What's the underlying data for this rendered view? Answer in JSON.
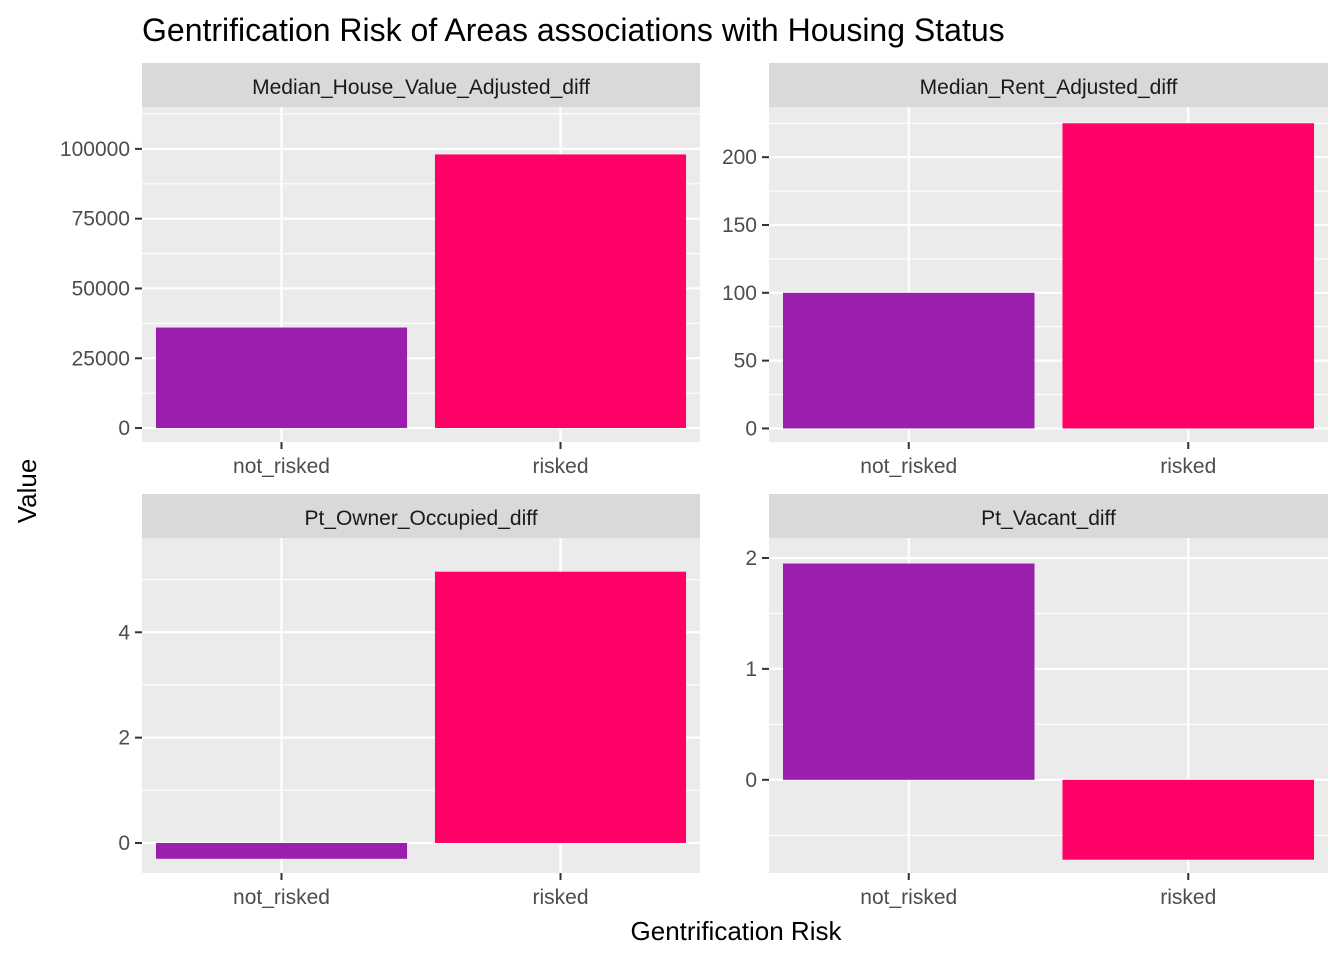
{
  "chart_data": {
    "type": "bar",
    "title": "Gentrification Risk of Areas associations with Housing Status",
    "xlabel": "Gentrification Risk",
    "ylabel": "Value",
    "categories": [
      "not_risked",
      "risked"
    ],
    "colors": {
      "not_risked": "#9A1FAD",
      "risked": "#FF0066",
      "panel_background": "#EBEBEB",
      "strip_background": "#D9D9D9",
      "grid": "#FFFFFF"
    },
    "grid": true,
    "legend": "none",
    "facets": [
      {
        "name": "Median_House_Value_Adjusted_diff",
        "values": [
          36000,
          98000
        ],
        "ylim": [
          -5000,
          115000
        ],
        "yticks": [
          0,
          25000,
          50000,
          75000,
          100000
        ],
        "ytick_labels": [
          "0",
          "25000",
          "50000",
          "75000",
          "100000"
        ]
      },
      {
        "name": "Median_Rent_Adjusted_diff",
        "values": [
          100,
          225
        ],
        "ylim": [
          -10,
          237
        ],
        "yticks": [
          0,
          50,
          100,
          150,
          200
        ],
        "ytick_labels": [
          "0",
          "50",
          "100",
          "150",
          "200"
        ]
      },
      {
        "name": "Pt_Owner_Occupied_diff",
        "values": [
          -0.3,
          5.15
        ],
        "ylim": [
          -0.57,
          5.79
        ],
        "yticks": [
          0,
          2,
          4
        ],
        "ytick_labels": [
          "0",
          "2",
          "4"
        ]
      },
      {
        "name": "Pt_Vacant_diff",
        "values": [
          1.95,
          -0.72
        ],
        "ylim": [
          -0.84,
          2.18
        ],
        "yticks": [
          0,
          1,
          2
        ],
        "ytick_labels": [
          "0",
          "1",
          "2"
        ]
      }
    ]
  }
}
